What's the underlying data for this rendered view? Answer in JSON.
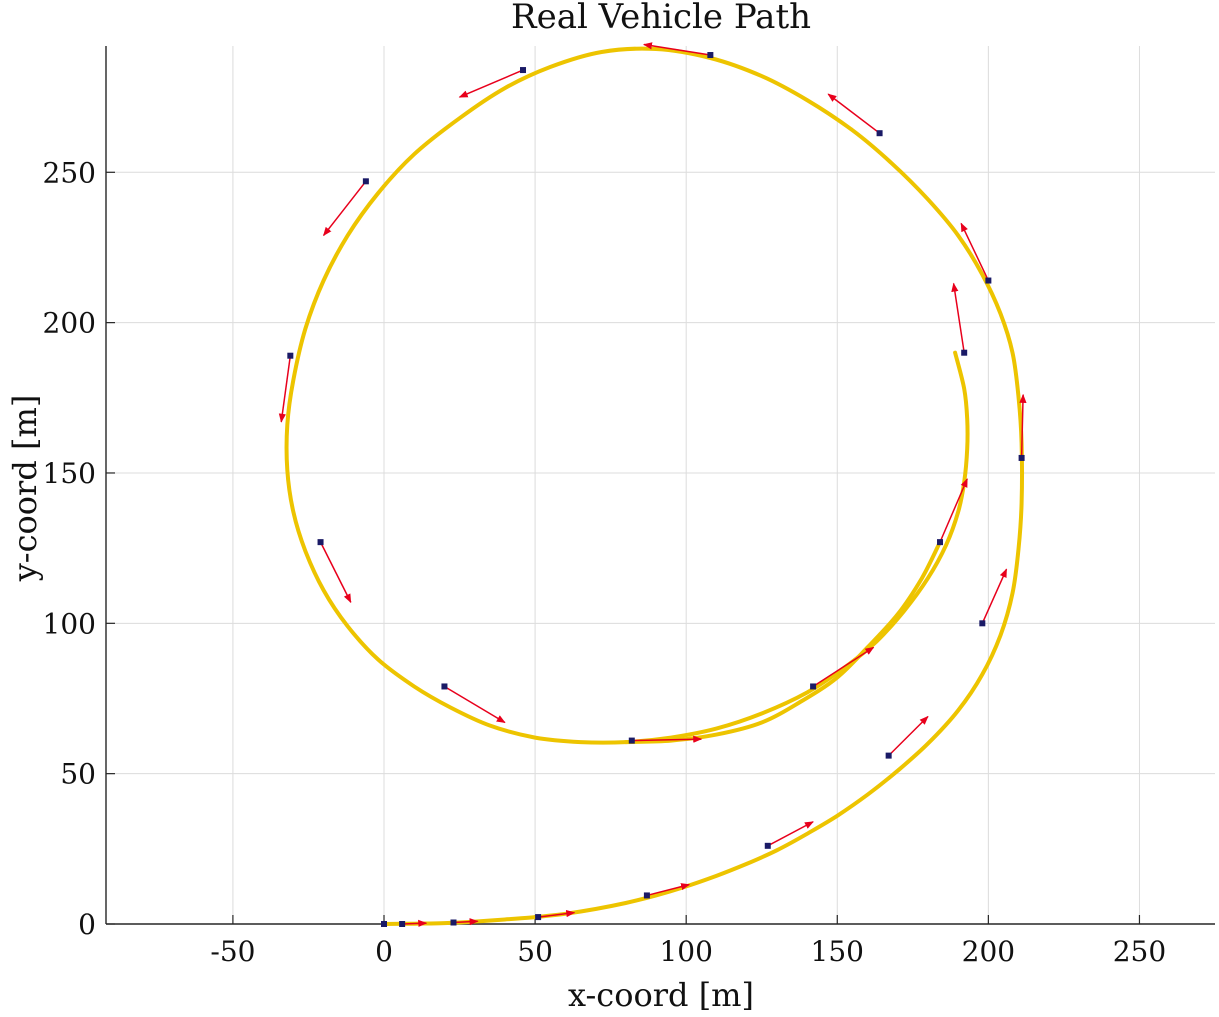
{
  "chart_data": {
    "type": "line",
    "title": "Real Vehicle Path",
    "xlabel": "x-coord [m]",
    "ylabel": "y-coord [m]",
    "xlim": [
      -92,
      275
    ],
    "ylim": [
      0,
      292
    ],
    "xticks": [
      -50,
      0,
      50,
      100,
      150,
      200,
      250
    ],
    "yticks": [
      0,
      50,
      100,
      150,
      200,
      250
    ],
    "xtick_labels": [
      "-50",
      "0",
      "50",
      "100",
      "150",
      "200",
      "250"
    ],
    "ytick_labels": [
      "0",
      "50",
      "100",
      "150",
      "200",
      "250"
    ],
    "grid": true,
    "colors": {
      "path": "#EDC400",
      "arrow": "#E8001C",
      "marker": "#1A1A66",
      "grid": "#dcdcdc",
      "axis": "#262626"
    },
    "path": {
      "x": [
        0,
        10,
        20,
        30,
        40,
        50,
        60,
        70,
        80,
        90,
        100,
        110,
        120,
        130,
        140,
        150,
        160,
        170,
        180,
        190,
        198,
        204,
        208,
        210,
        211,
        211,
        210,
        208,
        204,
        198,
        190,
        180,
        168,
        155,
        140,
        125,
        108,
        90,
        72,
        55,
        40,
        25,
        10,
        -2,
        -12,
        -20,
        -26,
        -30,
        -32,
        -32,
        -30,
        -26,
        -20,
        -12,
        -2,
        10,
        22,
        35,
        50,
        65,
        80,
        95,
        110,
        125,
        140,
        152,
        163,
        172,
        180,
        186,
        190,
        192,
        193,
        193,
        192,
        189,
        184,
        178,
        170,
        160,
        150,
        138,
        125,
        110,
        95,
        80
      ],
      "y": [
        0,
        0.1,
        0.3,
        0.8,
        1.5,
        2.3,
        3.4,
        5,
        7,
        9.5,
        12.5,
        16,
        20,
        24.5,
        30,
        36,
        43,
        51,
        60,
        71,
        83,
        96,
        110,
        125,
        140,
        160,
        175,
        190,
        203,
        216,
        229,
        241,
        253,
        264,
        274,
        282,
        288,
        291,
        290,
        285,
        278,
        268,
        256,
        243,
        229,
        214,
        198,
        181,
        166,
        151,
        137,
        124,
        111,
        99,
        88,
        79,
        72,
        66,
        62,
        60.5,
        60.5,
        62,
        65,
        70,
        77,
        85,
        94,
        104,
        115,
        126,
        137,
        147,
        158,
        168,
        178,
        190,
        127,
        115,
        103,
        92,
        82,
        74,
        67,
        63,
        61,
        60.5
      ]
    },
    "markers": [
      {
        "x": 0,
        "y": 0,
        "u": 0,
        "v": 0
      },
      {
        "x": 6,
        "y": 0,
        "u": 8,
        "v": 0.3
      },
      {
        "x": 23,
        "y": 0.5,
        "u": 8,
        "v": 0.4
      },
      {
        "x": 51,
        "y": 2.3,
        "u": 12,
        "v": 1.5
      },
      {
        "x": 87,
        "y": 9.5,
        "u": 14,
        "v": 3.6
      },
      {
        "x": 127,
        "y": 26,
        "u": 15,
        "v": 8
      },
      {
        "x": 167,
        "y": 56,
        "u": 13,
        "v": 13
      },
      {
        "x": 198,
        "y": 100,
        "u": 8,
        "v": 18
      },
      {
        "x": 211,
        "y": 155,
        "u": 0.5,
        "v": 21
      },
      {
        "x": 200,
        "y": 214,
        "u": -9,
        "v": 19
      },
      {
        "x": 164,
        "y": 263,
        "u": -17,
        "v": 13
      },
      {
        "x": 108,
        "y": 289,
        "u": -22,
        "v": 3.5
      },
      {
        "x": 46,
        "y": 284,
        "u": -21,
        "v": -9
      },
      {
        "x": -6,
        "y": 247,
        "u": -14,
        "v": -18
      },
      {
        "x": -31,
        "y": 189,
        "u": -3,
        "v": -22
      },
      {
        "x": -21,
        "y": 127,
        "u": 10,
        "v": -20
      },
      {
        "x": 20,
        "y": 79,
        "u": 20,
        "v": -12
      },
      {
        "x": 82,
        "y": 61,
        "u": 23,
        "v": 0.5
      },
      {
        "x": 142,
        "y": 79,
        "u": 20,
        "v": 13
      },
      {
        "x": 184,
        "y": 127,
        "u": 9,
        "v": 21
      },
      {
        "x": 192,
        "y": 190,
        "u": -3.5,
        "v": 23
      }
    ]
  }
}
